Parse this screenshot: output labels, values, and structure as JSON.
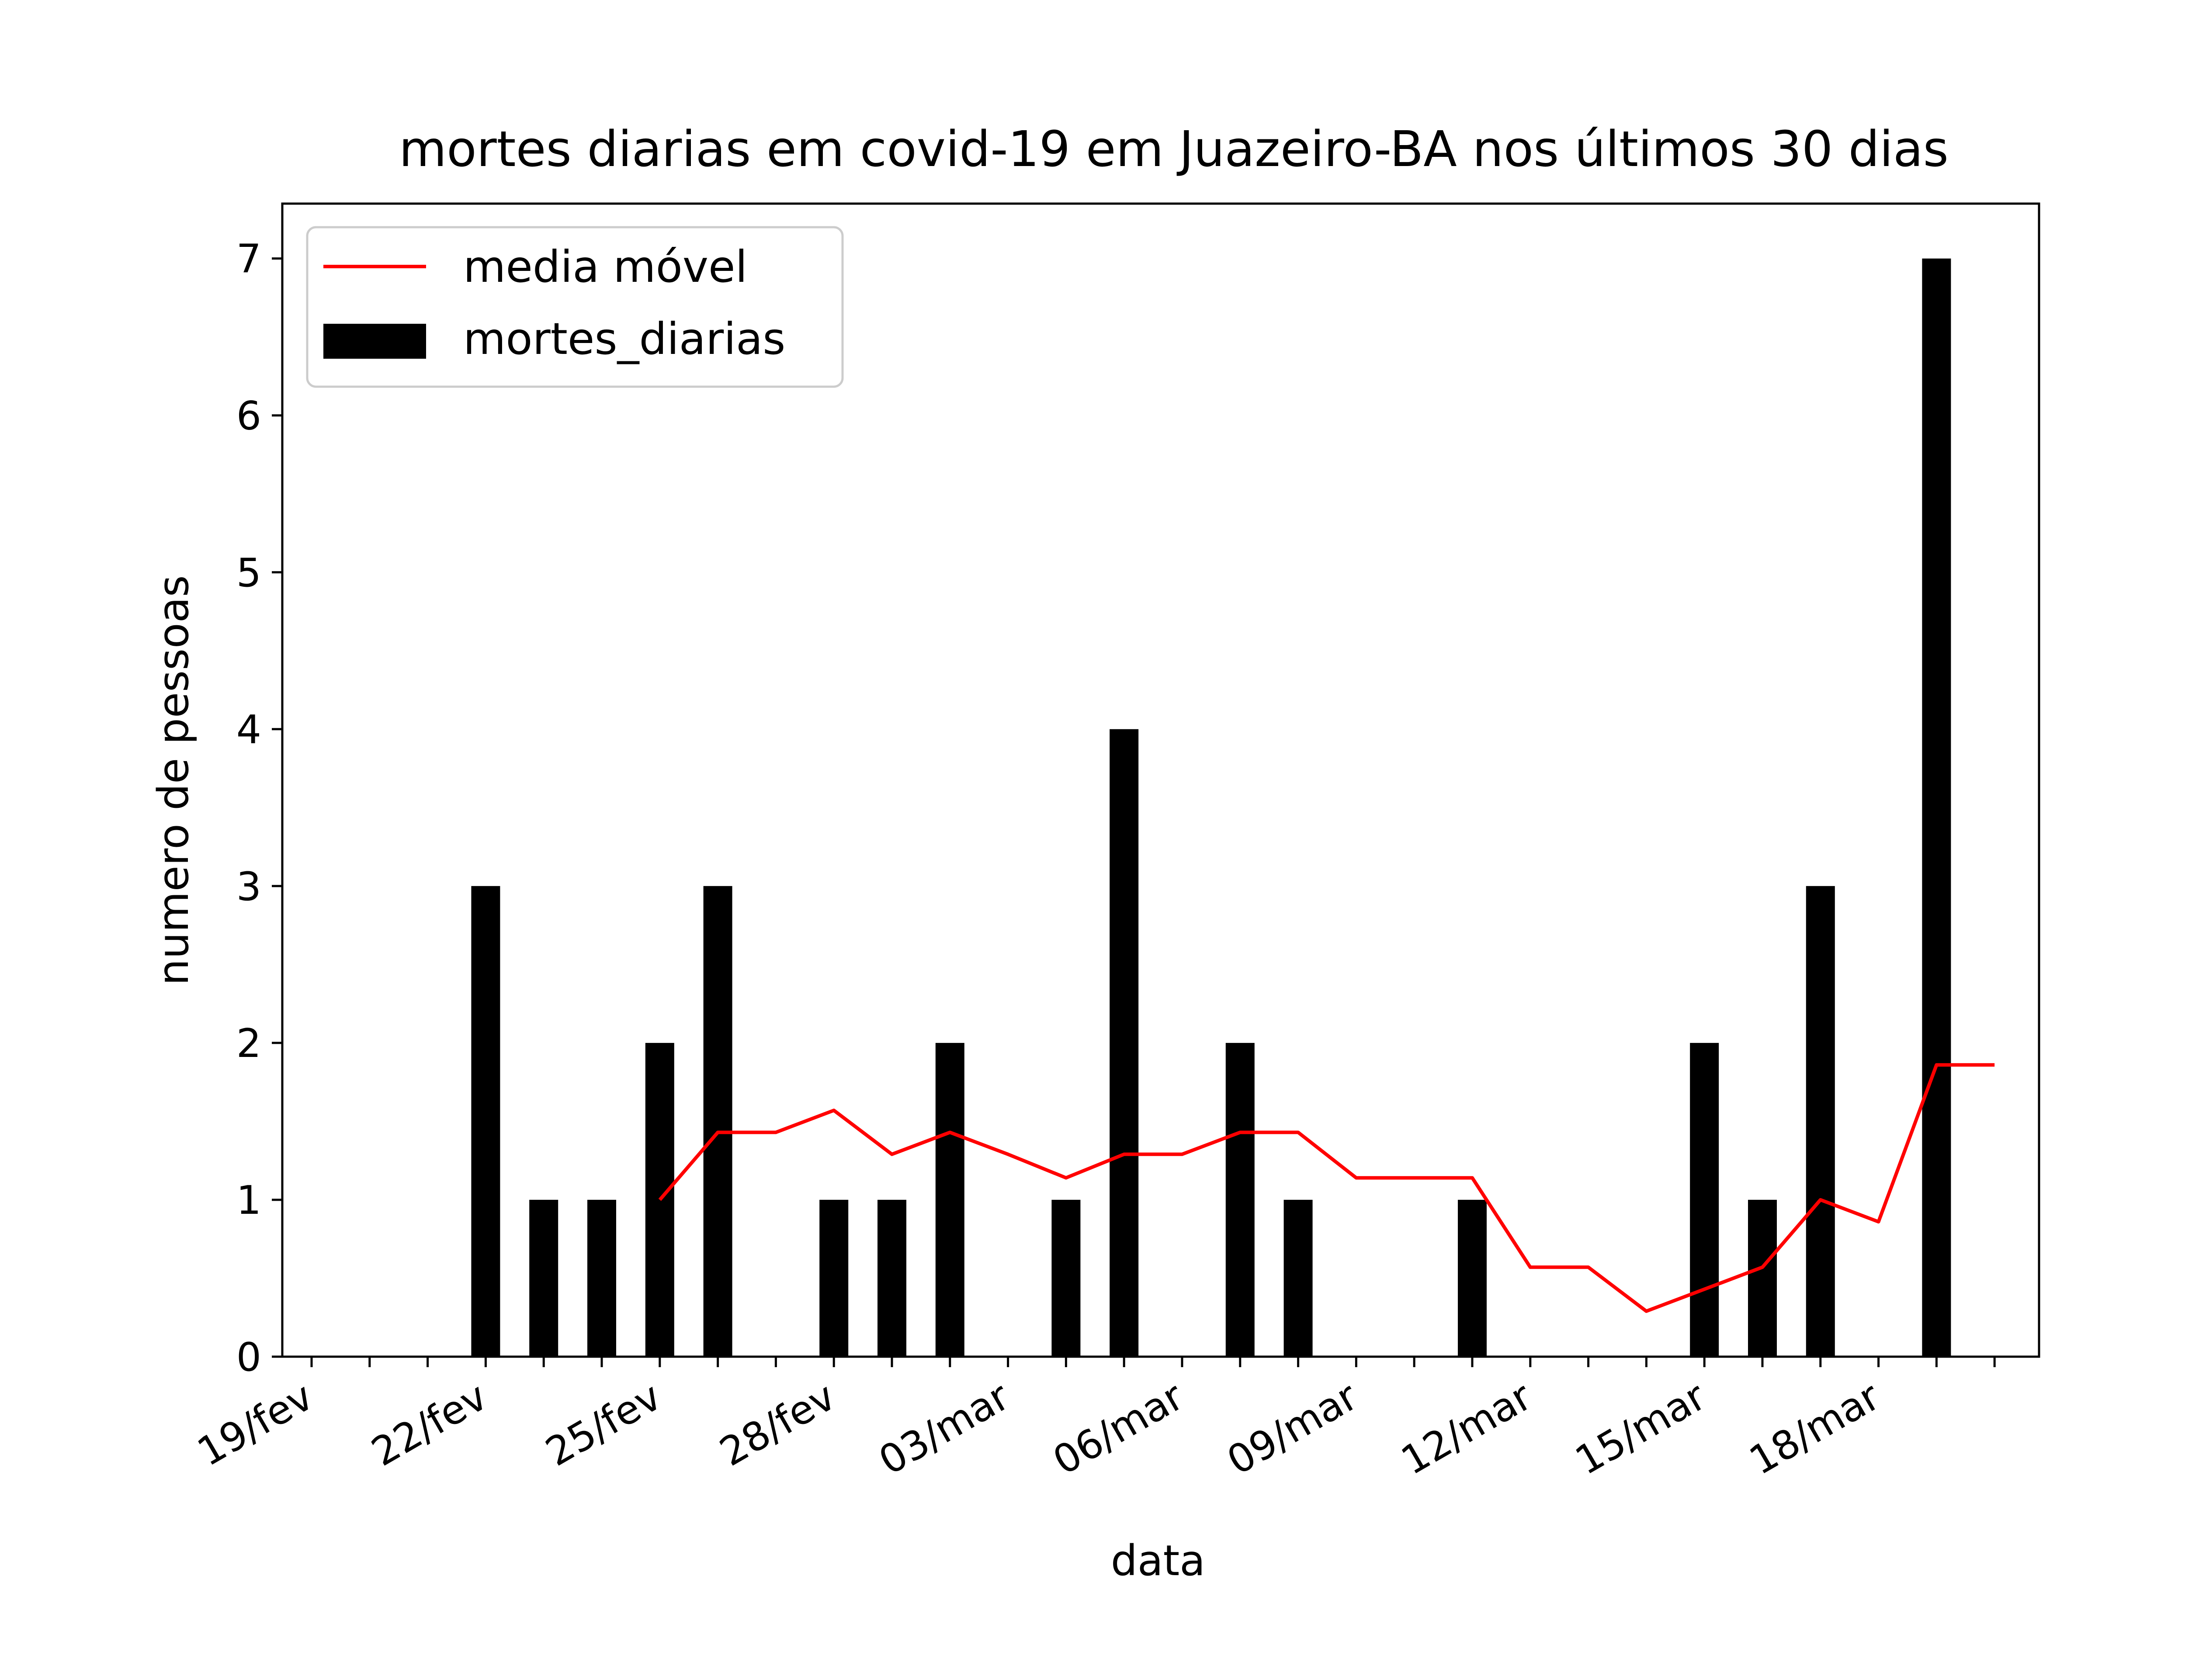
{
  "chart_data": {
    "type": "bar",
    "title": "mortes diarias em covid-19 em Juazeiro-BA nos últimos 30 dias",
    "xlabel": "data",
    "ylabel": "numero de pessoas",
    "ylim": [
      0,
      7.35
    ],
    "yticks": [
      0,
      1,
      2,
      3,
      4,
      5,
      6,
      7
    ],
    "dates": [
      "19/fev",
      "20/fev",
      "21/fev",
      "22/fev",
      "23/fev",
      "24/fev",
      "25/fev",
      "26/fev",
      "27/fev",
      "28/fev",
      "01/mar",
      "02/mar",
      "03/mar",
      "04/mar",
      "05/mar",
      "06/mar",
      "07/mar",
      "08/mar",
      "09/mar",
      "10/mar",
      "11/mar",
      "12/mar",
      "13/mar",
      "14/mar",
      "15/mar",
      "16/mar",
      "17/mar",
      "18/mar",
      "19/mar",
      "20/mar"
    ],
    "xtick_labels": [
      "19/fev",
      "22/fev",
      "25/fev",
      "28/fev",
      "03/mar",
      "06/mar",
      "09/mar",
      "12/mar",
      "15/mar",
      "18/mar"
    ],
    "grid": false,
    "legend_position": "upper-left",
    "series": [
      {
        "name": "media móvel",
        "kind": "line",
        "color": "#ff0000",
        "values": [
          null,
          null,
          null,
          null,
          null,
          null,
          1.0,
          1.43,
          1.43,
          1.57,
          1.29,
          1.43,
          1.29,
          1.14,
          1.29,
          1.29,
          1.43,
          1.43,
          1.14,
          1.14,
          1.14,
          0.57,
          0.57,
          0.29,
          0.43,
          0.57,
          1.0,
          0.86,
          1.86,
          1.86
        ]
      },
      {
        "name": "mortes_diarias",
        "kind": "bar",
        "color": "#000000",
        "values": [
          0,
          0,
          0,
          3,
          1,
          1,
          2,
          3,
          0,
          1,
          1,
          2,
          0,
          1,
          4,
          0,
          2,
          1,
          0,
          0,
          1,
          0,
          0,
          0,
          2,
          1,
          3,
          0,
          7,
          0
        ]
      }
    ]
  }
}
